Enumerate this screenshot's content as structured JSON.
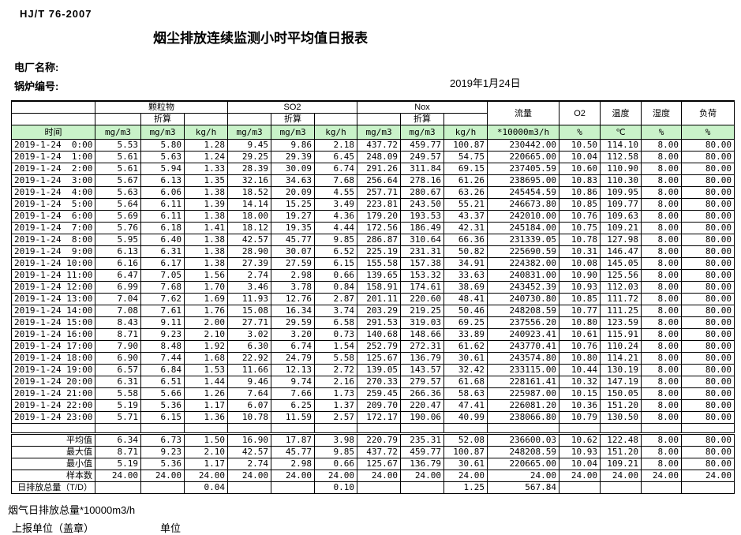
{
  "colors": {
    "header_green": "#c9f2c9",
    "border": "#000000"
  },
  "header": {
    "standard": "HJ/T  76-2007",
    "title": "烟尘排放连续监测小时平均值日报表",
    "plant_label": "电厂名称:",
    "boiler_label": "锅炉编号:",
    "date": "2019年1月24日"
  },
  "table": {
    "time_header": "时间",
    "converted_label": "折算",
    "groups": [
      {
        "label": "颗粒物"
      },
      {
        "label": "SO2"
      },
      {
        "label": "Nox"
      }
    ],
    "single_headers": [
      "流量",
      "O2",
      "温度",
      "湿度",
      "负荷"
    ],
    "units": [
      "mg/m3",
      "mg/m3",
      "kg/h",
      "mg/m3",
      "mg/m3",
      "kg/h",
      "mg/m3",
      "mg/m3",
      "kg/h",
      "*10000m3/h",
      "%",
      "℃",
      "%",
      "%"
    ],
    "rows": [
      {
        "time": "2019-1-24  0:00",
        "values": [
          "5.53",
          "5.80",
          "1.28",
          "9.45",
          "9.86",
          "2.18",
          "437.72",
          "459.77",
          "100.87",
          "230442.00",
          "10.50",
          "114.10",
          "8.00",
          "80.00"
        ]
      },
      {
        "time": "2019-1-24  1:00",
        "values": [
          "5.61",
          "5.63",
          "1.24",
          "29.25",
          "29.39",
          "6.45",
          "248.09",
          "249.57",
          "54.75",
          "220665.00",
          "10.04",
          "112.58",
          "8.00",
          "80.00"
        ]
      },
      {
        "time": "2019-1-24  2:00",
        "values": [
          "5.61",
          "5.94",
          "1.33",
          "28.39",
          "30.09",
          "6.74",
          "291.26",
          "311.84",
          "69.15",
          "237405.59",
          "10.60",
          "110.90",
          "8.00",
          "80.00"
        ]
      },
      {
        "time": "2019-1-24  3:00",
        "values": [
          "5.67",
          "6.13",
          "1.35",
          "32.16",
          "34.63",
          "7.68",
          "256.64",
          "278.16",
          "61.26",
          "238695.00",
          "10.83",
          "110.30",
          "8.00",
          "80.00"
        ]
      },
      {
        "time": "2019-1-24  4:00",
        "values": [
          "5.63",
          "6.06",
          "1.38",
          "18.52",
          "20.09",
          "4.55",
          "257.71",
          "280.67",
          "63.26",
          "245454.59",
          "10.86",
          "109.95",
          "8.00",
          "80.00"
        ]
      },
      {
        "time": "2019-1-24  5:00",
        "values": [
          "5.64",
          "6.11",
          "1.39",
          "14.14",
          "15.25",
          "3.49",
          "223.81",
          "243.50",
          "55.21",
          "246673.80",
          "10.85",
          "109.77",
          "8.00",
          "80.00"
        ]
      },
      {
        "time": "2019-1-24  6:00",
        "values": [
          "5.69",
          "6.11",
          "1.38",
          "18.00",
          "19.27",
          "4.36",
          "179.20",
          "193.53",
          "43.37",
          "242010.00",
          "10.76",
          "109.63",
          "8.00",
          "80.00"
        ]
      },
      {
        "time": "2019-1-24  7:00",
        "values": [
          "5.76",
          "6.18",
          "1.41",
          "18.12",
          "19.35",
          "4.44",
          "172.56",
          "186.49",
          "42.31",
          "245184.00",
          "10.75",
          "109.21",
          "8.00",
          "80.00"
        ]
      },
      {
        "time": "2019-1-24  8:00",
        "values": [
          "5.95",
          "6.40",
          "1.38",
          "42.57",
          "45.77",
          "9.85",
          "286.87",
          "310.64",
          "66.36",
          "231339.05",
          "10.78",
          "127.98",
          "8.00",
          "80.00"
        ]
      },
      {
        "time": "2019-1-24  9:00",
        "values": [
          "6.13",
          "6.31",
          "1.38",
          "28.90",
          "30.07",
          "6.52",
          "225.19",
          "231.31",
          "50.82",
          "225690.59",
          "10.31",
          "146.47",
          "8.00",
          "80.00"
        ]
      },
      {
        "time": "2019-1-24 10:00",
        "values": [
          "6.16",
          "6.17",
          "1.38",
          "27.39",
          "27.59",
          "6.15",
          "155.58",
          "157.38",
          "34.91",
          "224382.00",
          "10.08",
          "145.05",
          "8.00",
          "80.00"
        ]
      },
      {
        "time": "2019-1-24 11:00",
        "values": [
          "6.47",
          "7.05",
          "1.56",
          "2.74",
          "2.98",
          "0.66",
          "139.65",
          "153.32",
          "33.63",
          "240831.00",
          "10.90",
          "125.56",
          "8.00",
          "80.00"
        ]
      },
      {
        "time": "2019-1-24 12:00",
        "values": [
          "6.99",
          "7.68",
          "1.70",
          "3.46",
          "3.78",
          "0.84",
          "158.91",
          "174.61",
          "38.69",
          "243452.39",
          "10.93",
          "112.03",
          "8.00",
          "80.00"
        ]
      },
      {
        "time": "2019-1-24 13:00",
        "values": [
          "7.04",
          "7.62",
          "1.69",
          "11.93",
          "12.76",
          "2.87",
          "201.11",
          "220.60",
          "48.41",
          "240730.80",
          "10.85",
          "111.72",
          "8.00",
          "80.00"
        ]
      },
      {
        "time": "2019-1-24 14:00",
        "values": [
          "7.08",
          "7.61",
          "1.76",
          "15.08",
          "16.34",
          "3.74",
          "203.29",
          "219.25",
          "50.46",
          "248208.59",
          "10.77",
          "111.25",
          "8.00",
          "80.00"
        ]
      },
      {
        "time": "2019-1-24 15:00",
        "values": [
          "8.43",
          "9.11",
          "2.00",
          "27.71",
          "29.59",
          "6.58",
          "291.53",
          "319.03",
          "69.25",
          "237556.20",
          "10.80",
          "123.59",
          "8.00",
          "80.00"
        ]
      },
      {
        "time": "2019-1-24 16:00",
        "values": [
          "8.71",
          "9.23",
          "2.10",
          "3.02",
          "3.20",
          "0.73",
          "140.68",
          "148.66",
          "33.89",
          "240923.41",
          "10.61",
          "115.91",
          "8.00",
          "80.00"
        ]
      },
      {
        "time": "2019-1-24 17:00",
        "values": [
          "7.90",
          "8.48",
          "1.92",
          "6.30",
          "6.74",
          "1.54",
          "252.79",
          "272.31",
          "61.62",
          "243770.41",
          "10.76",
          "110.24",
          "8.00",
          "80.00"
        ]
      },
      {
        "time": "2019-1-24 18:00",
        "values": [
          "6.90",
          "7.44",
          "1.68",
          "22.92",
          "24.79",
          "5.58",
          "125.67",
          "136.79",
          "30.61",
          "243574.80",
          "10.80",
          "114.21",
          "8.00",
          "80.00"
        ]
      },
      {
        "time": "2019-1-24 19:00",
        "values": [
          "6.57",
          "6.84",
          "1.53",
          "11.66",
          "12.13",
          "2.72",
          "139.05",
          "143.57",
          "32.42",
          "233115.00",
          "10.44",
          "130.19",
          "8.00",
          "80.00"
        ]
      },
      {
        "time": "2019-1-24 20:00",
        "values": [
          "6.31",
          "6.51",
          "1.44",
          "9.46",
          "9.74",
          "2.16",
          "270.33",
          "279.57",
          "61.68",
          "228161.41",
          "10.32",
          "147.19",
          "8.00",
          "80.00"
        ]
      },
      {
        "time": "2019-1-24 21:00",
        "values": [
          "5.58",
          "5.66",
          "1.26",
          "7.64",
          "7.66",
          "1.73",
          "259.45",
          "266.36",
          "58.63",
          "225987.00",
          "10.15",
          "150.05",
          "8.00",
          "80.00"
        ]
      },
      {
        "time": "2019-1-24 22:00",
        "values": [
          "5.19",
          "5.36",
          "1.17",
          "6.07",
          "6.25",
          "1.37",
          "209.70",
          "220.47",
          "47.41",
          "226081.20",
          "10.36",
          "151.20",
          "8.00",
          "80.00"
        ]
      },
      {
        "time": "2019-1-24 23:00",
        "values": [
          "5.71",
          "6.15",
          "1.36",
          "10.78",
          "11.59",
          "2.57",
          "172.17",
          "190.06",
          "40.99",
          "238066.80",
          "10.79",
          "130.50",
          "8.00",
          "80.00"
        ]
      }
    ],
    "summary": [
      {
        "label": "平均值",
        "values": [
          "6.34",
          "6.73",
          "1.50",
          "16.90",
          "17.87",
          "3.98",
          "220.79",
          "235.31",
          "52.08",
          "236600.03",
          "10.62",
          "122.48",
          "8.00",
          "80.00"
        ]
      },
      {
        "label": "最大值",
        "values": [
          "8.71",
          "9.23",
          "2.10",
          "42.57",
          "45.77",
          "9.85",
          "437.72",
          "459.77",
          "100.87",
          "248208.59",
          "10.93",
          "151.20",
          "8.00",
          "80.00"
        ]
      },
      {
        "label": "最小值",
        "values": [
          "5.19",
          "5.36",
          "1.17",
          "2.74",
          "2.98",
          "0.66",
          "125.67",
          "136.79",
          "30.61",
          "220665.00",
          "10.04",
          "109.21",
          "8.00",
          "80.00"
        ]
      },
      {
        "label": "样本数",
        "values": [
          "24.00",
          "24.00",
          "24.00",
          "24.00",
          "24.00",
          "24.00",
          "24.00",
          "24.00",
          "24.00",
          "24.00",
          "24.00",
          "24.00",
          "24.00",
          "24.00"
        ]
      },
      {
        "label": "日排放总量（T/D）",
        "values": [
          "",
          "",
          "0.04",
          "",
          "",
          "0.10",
          "",
          "",
          "1.25",
          "567.84",
          "",
          "",
          "",
          ""
        ]
      }
    ]
  },
  "footer": {
    "note": "烟气日排放总量*10000m3/h",
    "report_unit": "上报单位（盖章）",
    "unit": "单位"
  }
}
